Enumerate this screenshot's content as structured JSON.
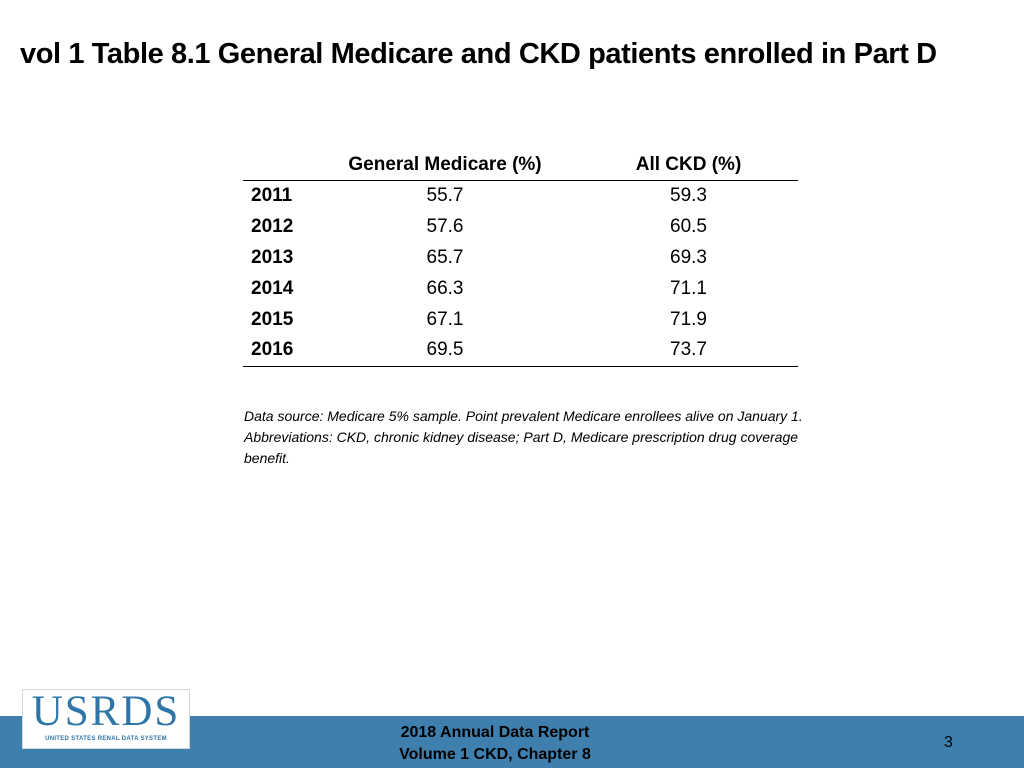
{
  "slide": {
    "title": "vol 1 Table 8.1 General Medicare and CKD patients enrolled in Part D"
  },
  "table": {
    "headers": [
      "",
      "General Medicare (%)",
      "All CKD (%)"
    ],
    "rows": [
      {
        "year": "2011",
        "general_medicare": "55.7",
        "all_ckd": "59.3"
      },
      {
        "year": "2012",
        "general_medicare": "57.6",
        "all_ckd": "60.5"
      },
      {
        "year": "2013",
        "general_medicare": "65.7",
        "all_ckd": "69.3"
      },
      {
        "year": "2014",
        "general_medicare": "66.3",
        "all_ckd": "71.1"
      },
      {
        "year": "2015",
        "general_medicare": "67.1",
        "all_ckd": "71.9"
      },
      {
        "year": "2016",
        "general_medicare": "69.5",
        "all_ckd": "73.7"
      }
    ]
  },
  "footnote": "Data source: Medicare 5% sample. Point prevalent Medicare enrollees alive on January 1. Abbreviations: CKD, chronic kidney disease; Part D, Medicare prescription drug coverage benefit.",
  "logo": {
    "text": "USRDS",
    "subtitle": "UNITED STATES RENAL DATA SYSTEM"
  },
  "footer": {
    "report_line1": "2018 Annual Data Report",
    "report_line2": "Volume 1 CKD, Chapter 8",
    "page_number": "3"
  },
  "colors": {
    "footer_bar": "#3f7fad",
    "logo_blue": "#2e75a8"
  }
}
